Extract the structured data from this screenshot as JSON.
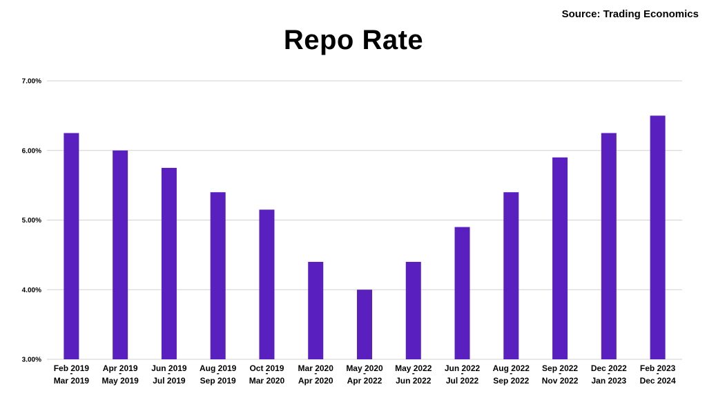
{
  "source": "Source: Trading Economics",
  "chart_data": {
    "type": "bar",
    "title": "Repo Rate",
    "xlabel": "",
    "ylabel": "",
    "ylim": [
      3.0,
      7.0
    ],
    "yticks": [
      "3.00%",
      "4.00%",
      "5.00%",
      "6.00%",
      "7.00%"
    ],
    "grid": true,
    "color": "#5a1fbf",
    "categories": [
      [
        "Feb 2019",
        "-",
        "Mar 2019"
      ],
      [
        "Apr 2019",
        "-",
        "May 2019"
      ],
      [
        "Jun 2019",
        "-",
        "Jul 2019"
      ],
      [
        "Aug 2019",
        "-",
        "Sep 2019"
      ],
      [
        "Oct 2019",
        "-",
        "Mar 2020"
      ],
      [
        "Mar 2020",
        "-",
        "Apr 2020"
      ],
      [
        "May 2020",
        "-",
        "Apr 2022"
      ],
      [
        "May 2022",
        "-",
        "Jun 2022"
      ],
      [
        "Jun 2022",
        "-",
        "Jul 2022"
      ],
      [
        "Aug 2022",
        "-",
        "Sep 2022"
      ],
      [
        "Sep 2022",
        "-",
        "Nov 2022"
      ],
      [
        "Dec 2022",
        "-",
        "Jan 2023"
      ],
      [
        "Feb 2023",
        "-",
        "Dec 2024"
      ]
    ],
    "values": [
      6.25,
      6.0,
      5.75,
      5.4,
      5.15,
      4.4,
      4.0,
      4.4,
      4.9,
      5.4,
      5.9,
      6.25,
      6.5
    ]
  }
}
